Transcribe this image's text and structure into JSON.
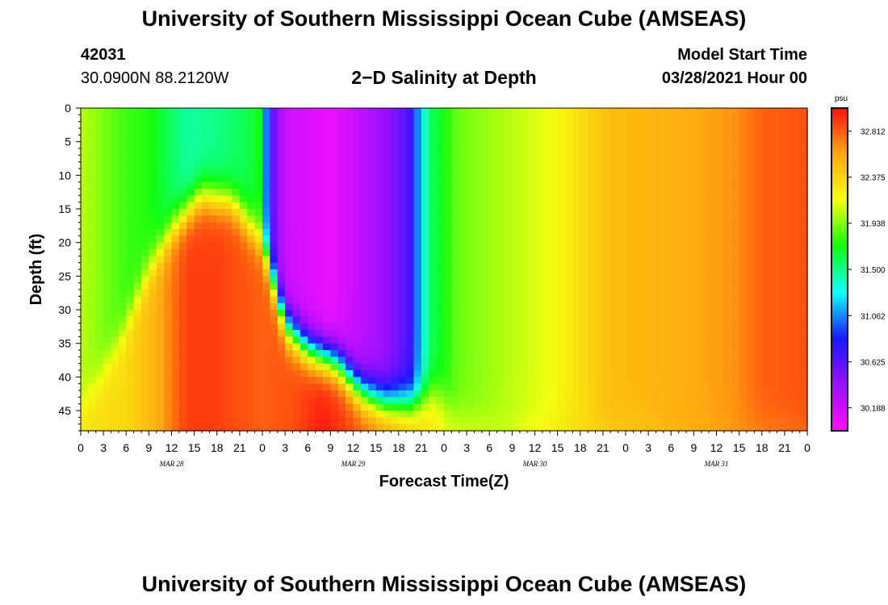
{
  "header": {
    "title": "University of Southern Mississippi Ocean Cube (AMSEAS)",
    "station_id": "42031",
    "location": "30.0900N  88.2120W",
    "model_start_label": "Model Start Time",
    "model_start_value": "03/28/2021 Hour 00"
  },
  "footer": {
    "title": "University of Southern Mississippi Ocean Cube (AMSEAS)"
  },
  "chart_data": {
    "type": "heatmap",
    "title": "2−D Salinity at Depth",
    "xlabel": "Forecast Time(Z)",
    "ylabel": "Depth (ft)",
    "x_range_hours": [
      0,
      96
    ],
    "y_range_ft": [
      0,
      48
    ],
    "x_tick_labels": [
      "0",
      "3",
      "6",
      "9",
      "12",
      "15",
      "18",
      "21",
      "0",
      "3",
      "6",
      "9",
      "12",
      "15",
      "18",
      "21",
      "0",
      "3",
      "6",
      "9",
      "12",
      "15",
      "18",
      "21",
      "0",
      "3",
      "6",
      "9",
      "12",
      "15",
      "18",
      "21",
      "0"
    ],
    "y_tick_labels": [
      "0",
      "5",
      "10",
      "15",
      "20",
      "25",
      "30",
      "35",
      "40",
      "45"
    ],
    "y_tick_values": [
      0,
      5,
      10,
      15,
      20,
      25,
      30,
      35,
      40,
      45
    ],
    "date_labels": [
      "MAR 28",
      "MAR 29",
      "MAR 30",
      "MAR 31"
    ],
    "date_label_hours": [
      12,
      36,
      60,
      84
    ],
    "colorbar": {
      "unit": "psu",
      "range": [
        29.97,
        33.03
      ],
      "tick_labels": [
        "32.812",
        "32.375",
        "31.938",
        "31.500",
        "31.062",
        "30.625",
        "30.188"
      ],
      "tick_values": [
        32.812,
        32.375,
        31.938,
        31.5,
        31.062,
        30.625,
        30.188
      ],
      "colors": [
        "#ff10ff",
        "#9a10ff",
        "#1818ff",
        "#10ffff",
        "#10ff10",
        "#f4ff10",
        "#ffaa10",
        "#ff1010"
      ]
    }
  }
}
